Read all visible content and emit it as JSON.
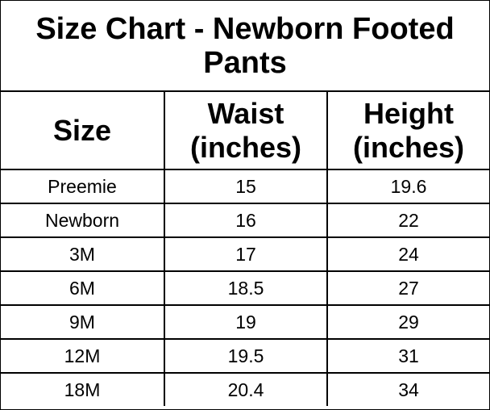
{
  "title": "Size Chart - Newborn Footed Pants",
  "headers": [
    "Size",
    "Waist (inches)",
    "Height (inches)"
  ],
  "rows": [
    [
      "Preemie",
      "15",
      "19.6"
    ],
    [
      "Newborn",
      "16",
      "22"
    ],
    [
      "3M",
      "17",
      "24"
    ],
    [
      "6M",
      "18.5",
      "27"
    ],
    [
      "9M",
      "19",
      "29"
    ],
    [
      "12M",
      "19.5",
      "31"
    ],
    [
      "18M",
      "20.4",
      "34"
    ]
  ]
}
